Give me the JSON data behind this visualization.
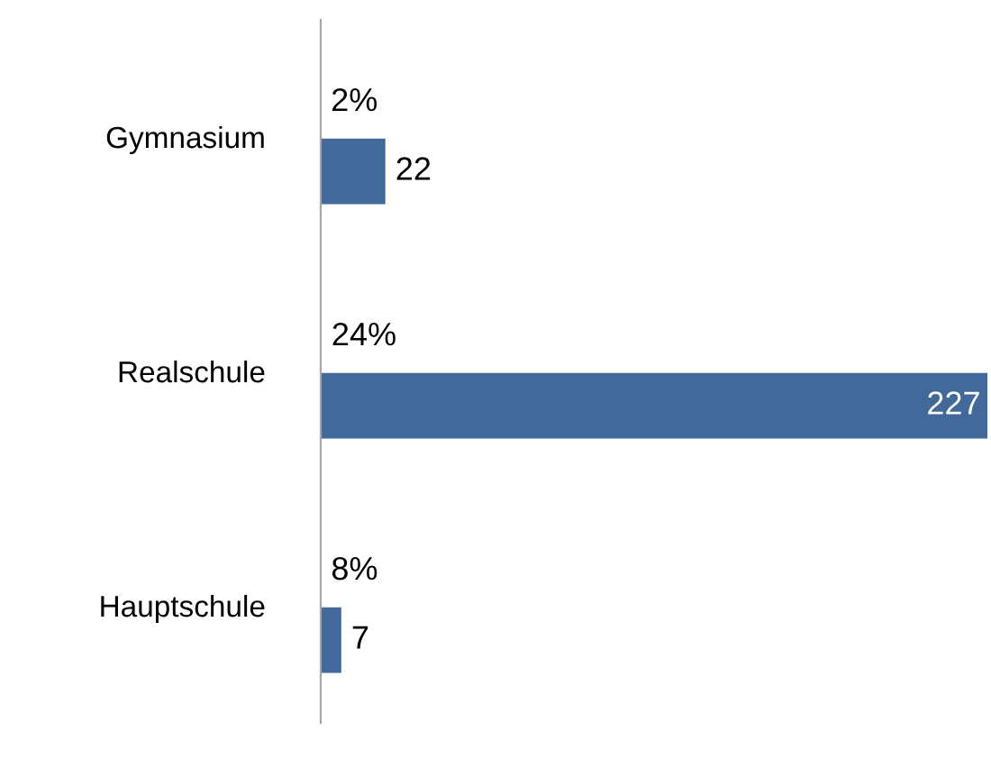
{
  "chart_data": {
    "type": "bar",
    "orientation": "horizontal",
    "categories": [
      "Gymnasium",
      "Realschule",
      "Hauptschule"
    ],
    "series": [
      {
        "color": "#bfbfbf",
        "values": [
          0.02,
          0.24,
          0.08
        ],
        "value_labels": [
          "2%",
          "24%",
          "8%"
        ]
      },
      {
        "color": "#41699a",
        "values": [
          22,
          227,
          7
        ],
        "value_labels": [
          "22",
          "227",
          "7"
        ]
      }
    ]
  }
}
